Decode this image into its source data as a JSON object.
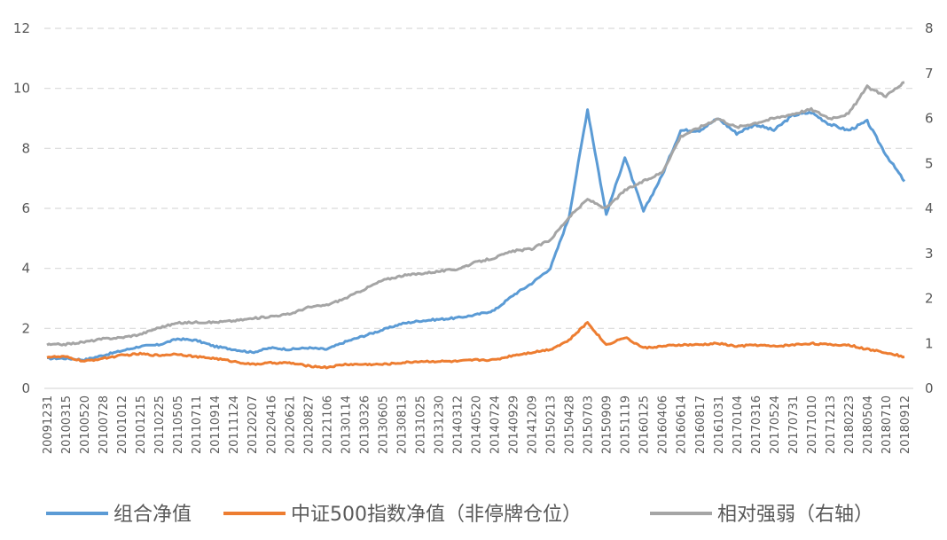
{
  "chart_data": {
    "type": "line",
    "title": "",
    "xlabel": "",
    "ylabel": "",
    "y2label": "",
    "ylim": [
      0,
      12
    ],
    "y2lim": [
      0,
      8
    ],
    "yticks": [
      "0",
      "2",
      "4",
      "6",
      "8",
      "10",
      "12"
    ],
    "y2ticks": [
      "0",
      "1",
      "2",
      "3",
      "4",
      "5",
      "6",
      "7",
      "8"
    ],
    "grid": "horizontal-dashed",
    "legend_position": "bottom",
    "x": [
      "20091231",
      "20100315",
      "20100520",
      "20100728",
      "20101012",
      "20101215",
      "20110225",
      "20110505",
      "20110711",
      "20110914",
      "20111124",
      "20120207",
      "20120416",
      "20120621",
      "20120827",
      "20121106",
      "20130114",
      "20130326",
      "20130605",
      "20130813",
      "20131025",
      "20131230",
      "20140312",
      "20140520",
      "20140724",
      "20140929",
      "20141209",
      "20150213",
      "20150428",
      "20150703",
      "20150909",
      "20151119",
      "20160125",
      "20160406",
      "20160614",
      "20160817",
      "20161031",
      "20170104",
      "20170316",
      "20170524",
      "20170731",
      "20171010",
      "20171213",
      "20180223",
      "20180504",
      "20180710",
      "20180912"
    ],
    "series": [
      {
        "name": "组合净值",
        "axis": "left",
        "color": "#5b9bd5",
        "values": [
          1.0,
          1.0,
          0.95,
          1.1,
          1.25,
          1.4,
          1.45,
          1.65,
          1.6,
          1.4,
          1.3,
          1.2,
          1.35,
          1.3,
          1.35,
          1.3,
          1.55,
          1.75,
          1.95,
          2.15,
          2.25,
          2.3,
          2.35,
          2.45,
          2.6,
          3.1,
          3.5,
          4.0,
          5.7,
          9.3,
          5.8,
          7.7,
          5.9,
          7.1,
          8.6,
          8.6,
          9.0,
          8.5,
          8.8,
          8.6,
          9.1,
          9.2,
          8.8,
          8.6,
          8.9,
          7.8,
          6.9
        ]
      },
      {
        "name": "中证500指数净值（非停牌仓位）",
        "axis": "left",
        "color": "#ed7d31",
        "values": [
          1.05,
          1.05,
          0.9,
          1.0,
          1.1,
          1.15,
          1.1,
          1.15,
          1.05,
          1.0,
          0.9,
          0.8,
          0.85,
          0.85,
          0.75,
          0.7,
          0.8,
          0.8,
          0.8,
          0.85,
          0.9,
          0.9,
          0.9,
          0.95,
          0.95,
          1.1,
          1.2,
          1.3,
          1.6,
          2.2,
          1.45,
          1.7,
          1.35,
          1.4,
          1.45,
          1.45,
          1.5,
          1.4,
          1.45,
          1.4,
          1.45,
          1.5,
          1.45,
          1.45,
          1.3,
          1.2,
          1.05
        ]
      },
      {
        "name": "相对强弱（右轴）",
        "axis": "right",
        "color": "#a5a5a5",
        "values": [
          0.97,
          0.98,
          1.03,
          1.1,
          1.13,
          1.2,
          1.35,
          1.45,
          1.47,
          1.47,
          1.5,
          1.55,
          1.6,
          1.65,
          1.8,
          1.85,
          2.0,
          2.2,
          2.4,
          2.5,
          2.55,
          2.6,
          2.65,
          2.8,
          2.9,
          3.05,
          3.1,
          3.3,
          3.8,
          4.2,
          4.0,
          4.4,
          4.6,
          4.8,
          5.6,
          5.8,
          6.0,
          5.8,
          5.9,
          6.0,
          6.1,
          6.2,
          6.0,
          6.1,
          6.7,
          6.5,
          6.8
        ]
      }
    ]
  }
}
